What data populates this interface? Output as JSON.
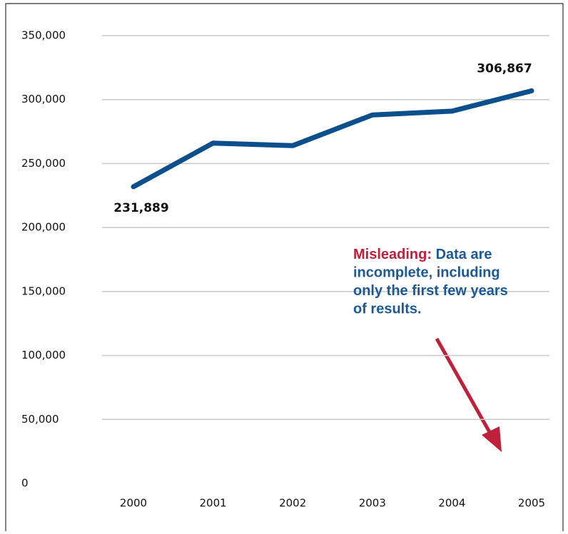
{
  "chart_data": {
    "type": "line",
    "categories": [
      "2000",
      "2001",
      "2002",
      "2003",
      "2004",
      "2005"
    ],
    "values": [
      231889,
      266000,
      264000,
      288000,
      291000,
      306867
    ],
    "value_labels": [
      "231,889",
      null,
      null,
      null,
      null,
      "306,867"
    ],
    "color": "#0b4f8d",
    "ylim": [
      0,
      350000
    ],
    "yticks": [
      0,
      {
        "value": 50000,
        "label": "50,000"
      },
      {
        "value": 100000,
        "label": "100,000"
      },
      {
        "value": 150000,
        "label": "150,000"
      },
      {
        "value": 200000,
        "label": "200,000"
      },
      {
        "value": 250000,
        "label": "250,000"
      },
      {
        "value": 300000,
        "label": "300,000"
      },
      {
        "value": 350000,
        "label": "350,000"
      }
    ],
    "grid": true,
    "annotation": {
      "label": "Misleading:",
      "lines": [
        "Data are",
        "incomplete, including",
        "only the first few years",
        "of results."
      ],
      "label_color": "#c0203a",
      "text_color": "#1c5a96"
    }
  }
}
